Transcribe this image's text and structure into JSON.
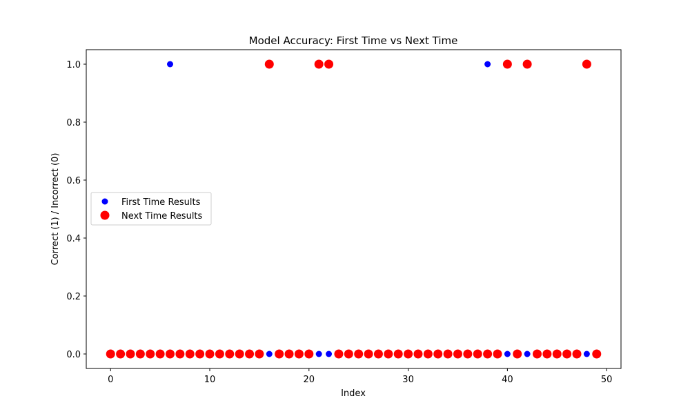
{
  "chart_data": {
    "type": "scatter",
    "title": "Model Accuracy: First Time vs Next Time",
    "xlabel": "Index",
    "ylabel": "Correct (1) / Incorrect (0)",
    "xlim": [
      -2.45,
      51.45
    ],
    "ylim": [
      -0.05,
      1.05
    ],
    "xticks": [
      0,
      10,
      20,
      30,
      40,
      50
    ],
    "xtick_labels": [
      "0",
      "10",
      "20",
      "30",
      "40",
      "50"
    ],
    "yticks": [
      0.0,
      0.2,
      0.4,
      0.6,
      0.8,
      1.0
    ],
    "ytick_labels": [
      "0.0",
      "0.2",
      "0.4",
      "0.6",
      "0.8",
      "1.0"
    ],
    "grid": false,
    "legend_placement": "center-left",
    "x": [
      0,
      1,
      2,
      3,
      4,
      5,
      6,
      7,
      8,
      9,
      10,
      11,
      12,
      13,
      14,
      15,
      16,
      17,
      18,
      19,
      20,
      21,
      22,
      23,
      24,
      25,
      26,
      27,
      28,
      29,
      30,
      31,
      32,
      33,
      34,
      35,
      36,
      37,
      38,
      39,
      40,
      41,
      42,
      43,
      44,
      45,
      46,
      47,
      48,
      49
    ],
    "series": [
      {
        "name": "First Time Results",
        "color": "#0000ff",
        "values": [
          0,
          0,
          0,
          0,
          0,
          0,
          1,
          0,
          0,
          0,
          0,
          0,
          0,
          0,
          0,
          0,
          0,
          0,
          0,
          0,
          0,
          0,
          0,
          0,
          0,
          0,
          0,
          0,
          0,
          0,
          0,
          0,
          0,
          0,
          0,
          0,
          0,
          0,
          1,
          0,
          0,
          0,
          0,
          0,
          0,
          0,
          0,
          0,
          0,
          0
        ]
      },
      {
        "name": "Next Time Results",
        "color": "#ff0000",
        "values": [
          0,
          0,
          0,
          0,
          0,
          0,
          0,
          0,
          0,
          0,
          0,
          0,
          0,
          0,
          0,
          0,
          1,
          0,
          0,
          0,
          0,
          1,
          1,
          0,
          0,
          0,
          0,
          0,
          0,
          0,
          0,
          0,
          0,
          0,
          0,
          0,
          0,
          0,
          0,
          0,
          1,
          0,
          1,
          0,
          0,
          0,
          0,
          0,
          1,
          0
        ]
      }
    ]
  }
}
